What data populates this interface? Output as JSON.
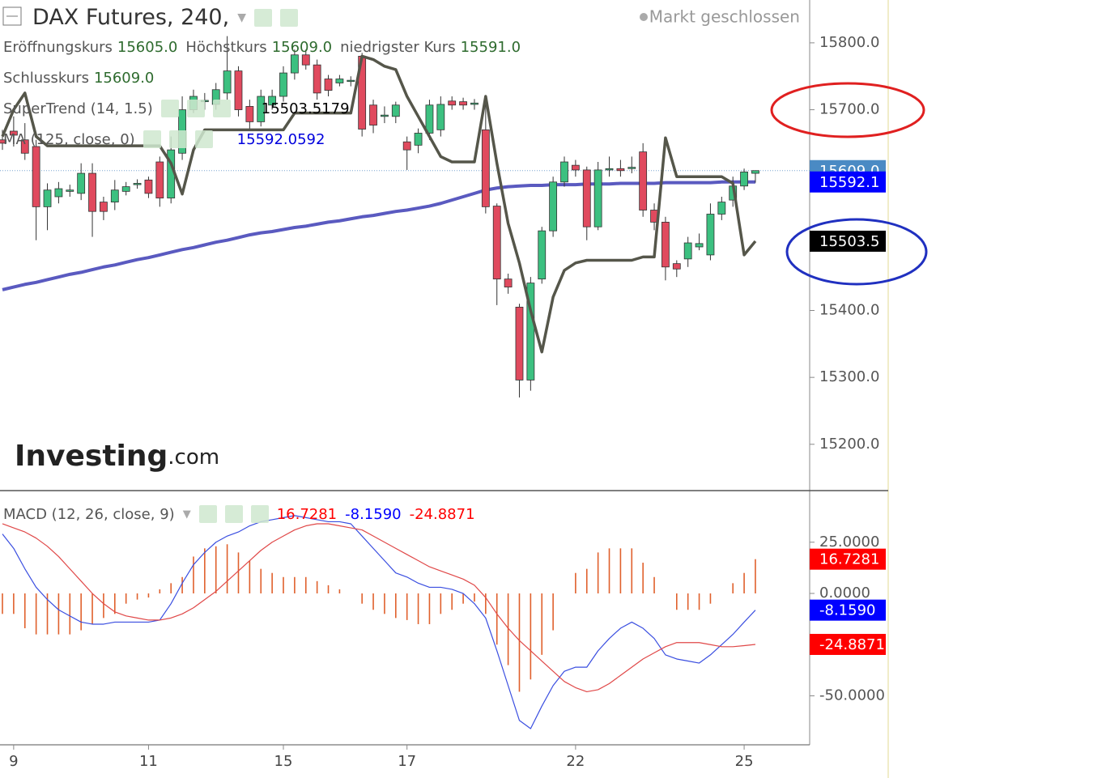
{
  "chart_data": [
    {
      "type": "candlestick",
      "title": "DAX Futures, 240,",
      "status": "Markt geschlossen",
      "watermark": {
        "brand": "Investing",
        "suffix": ".com"
      },
      "ohlc_legend": [
        {
          "label": "Eröffnungskurs",
          "value": "15605.0"
        },
        {
          "label": "Höchstkurs",
          "value": "15609.0"
        },
        {
          "label": "niedrigster Kurs",
          "value": "15591.0"
        }
      ],
      "close_legend": {
        "label": "Schlusskurs",
        "value": "15609.0"
      },
      "last_label": "15609.0",
      "last_color": "#4a8ac4",
      "up_color": "#3cc080",
      "down_color": "#e04a5e",
      "open": [
        15655,
        15668,
        15655,
        15645,
        15555,
        15570,
        15578,
        15575,
        15605,
        15562,
        15562,
        15578,
        15588,
        15595,
        15622,
        15568,
        15635,
        15700,
        15712,
        15708,
        15725,
        15758,
        15705,
        15682,
        15707,
        15720,
        15755,
        15782,
        15767,
        15746,
        15740,
        15743,
        15780,
        15707,
        15690,
        15690,
        15652,
        15647,
        15665,
        15670,
        15713,
        15712,
        15708,
        15670,
        15556,
        15447,
        15405,
        15296,
        15447,
        15519,
        15592,
        15617,
        15610,
        15525,
        15610,
        15612,
        15612,
        15637,
        15550,
        15532,
        15470,
        15477,
        15495,
        15483,
        15544,
        15565,
        15586,
        15605
      ],
      "high": [
        15670,
        15690,
        15680,
        15655,
        15590,
        15592,
        15588,
        15620,
        15620,
        15570,
        15595,
        15592,
        15596,
        15600,
        15630,
        15660,
        15720,
        15730,
        15725,
        15740,
        15810,
        15765,
        15715,
        15730,
        15730,
        15765,
        15790,
        15790,
        15775,
        15752,
        15752,
        15750,
        15785,
        15715,
        15705,
        15712,
        15660,
        15672,
        15715,
        15720,
        15720,
        15718,
        15716,
        15710,
        15560,
        15455,
        15410,
        15450,
        15525,
        15600,
        15630,
        15625,
        15615,
        15622,
        15630,
        15625,
        15630,
        15650,
        15560,
        15540,
        15475,
        15510,
        15515,
        15560,
        15570,
        15600,
        15612,
        15609
      ],
      "low": [
        15640,
        15645,
        15625,
        15505,
        15520,
        15560,
        15570,
        15565,
        15510,
        15535,
        15550,
        15572,
        15582,
        15568,
        15555,
        15560,
        15625,
        15695,
        15700,
        15700,
        15715,
        15690,
        15670,
        15675,
        15700,
        15712,
        15745,
        15760,
        15715,
        15720,
        15735,
        15735,
        15660,
        15665,
        15680,
        15680,
        15610,
        15635,
        15655,
        15660,
        15700,
        15700,
        15700,
        15545,
        15408,
        15425,
        15270,
        15280,
        15440,
        15510,
        15585,
        15600,
        15505,
        15520,
        15600,
        15600,
        15605,
        15540,
        15520,
        15445,
        15450,
        15465,
        15490,
        15475,
        15535,
        15555,
        15580,
        15591
      ],
      "close": [
        15650,
        15662,
        15635,
        15555,
        15580,
        15582,
        15580,
        15605,
        15548,
        15548,
        15580,
        15585,
        15590,
        15575,
        15568,
        15640,
        15700,
        15720,
        15714,
        15730,
        15758,
        15700,
        15682,
        15720,
        15720,
        15755,
        15782,
        15767,
        15725,
        15729,
        15746,
        15744,
        15671,
        15677,
        15692,
        15707,
        15640,
        15665,
        15707,
        15708,
        15707,
        15707,
        15710,
        15555,
        15447,
        15435,
        15296,
        15441,
        15519,
        15592,
        15622,
        15610,
        15525,
        15610,
        15612,
        15609,
        15614,
        15550,
        15532,
        15465,
        15462,
        15501,
        15500,
        15544,
        15562,
        15586,
        15607,
        15609
      ],
      "overlays": [
        {
          "name": "SuperTrend (14, 1.5)",
          "color": "#55564a",
          "width": 3.5,
          "legend_value": "15503.5179",
          "legend_color": "#000000",
          "value_label": "15503.5",
          "tag_color": "#000000",
          "values": [
            15660,
            15700,
            15725,
            15660,
            15646,
            15646,
            15646,
            15646,
            15646,
            15646,
            15646,
            15646,
            15646,
            15646,
            15646,
            15620,
            15574,
            15640,
            15670,
            15670,
            15670,
            15670,
            15670,
            15670,
            15670,
            15670,
            15695,
            15695,
            15695,
            15695,
            15695,
            15695,
            15780,
            15775,
            15765,
            15760,
            15720,
            15690,
            15660,
            15630,
            15622,
            15622,
            15622,
            15720,
            15620,
            15530,
            15471,
            15400,
            15338,
            15420,
            15460,
            15471,
            15475,
            15475,
            15475,
            15475,
            15475,
            15480,
            15480,
            15658,
            15600,
            15600,
            15600,
            15600,
            15600,
            15590,
            15483,
            15503.5179
          ]
        },
        {
          "name": "MA (125, close, 0)",
          "color": "#5a5ac0",
          "width": 4,
          "legend_value": "15592.0592",
          "legend_color": "#0000dd",
          "value_label": "15592.1",
          "tag_color": "#0000ff",
          "values": [
            15431,
            15435,
            15439,
            15442,
            15446,
            15450,
            15454,
            15457,
            15461,
            15465,
            15468,
            15472,
            15476,
            15479,
            15483,
            15487,
            15491,
            15494,
            15498,
            15502,
            15505,
            15509,
            15513,
            15516,
            15518,
            15521,
            15524,
            15526,
            15529,
            15532,
            15534,
            15537,
            15540,
            15542,
            15545,
            15548,
            15550,
            15553,
            15556,
            15560,
            15565,
            15570,
            15575,
            15580,
            15583,
            15585,
            15586,
            15587,
            15587,
            15588,
            15588,
            15588,
            15589,
            15589,
            15589,
            15590,
            15590,
            15590,
            15590,
            15591,
            15591,
            15591,
            15591,
            15591,
            15592,
            15592,
            15592,
            15592.0592
          ]
        }
      ],
      "ylim": [
        15132,
        15864
      ],
      "yticks": [
        {
          "value": 15200,
          "label": "15200.0"
        },
        {
          "value": 15300,
          "label": "15300.0"
        },
        {
          "value": 15400,
          "label": "15400.0"
        },
        {
          "value": 15700,
          "label": "15700.0"
        },
        {
          "value": 15800,
          "label": "15800.0"
        }
      ]
    },
    {
      "type": "macd",
      "title": "MACD (12, 26, close, 9)",
      "categories": [
        null,
        "9",
        null,
        null,
        null,
        null,
        null,
        null,
        null,
        null,
        null,
        null,
        null,
        "11",
        null,
        null,
        null,
        null,
        null,
        null,
        null,
        null,
        null,
        null,
        null,
        "15",
        null,
        null,
        null,
        null,
        null,
        null,
        null,
        null,
        null,
        null,
        "17",
        null,
        null,
        null,
        null,
        null,
        null,
        null,
        null,
        null,
        null,
        null,
        null,
        null,
        null,
        "22",
        null,
        null,
        null,
        null,
        null,
        null,
        null,
        null,
        null,
        null,
        null,
        null,
        null,
        null,
        "25",
        null
      ],
      "histogram": {
        "color": "#e0602c",
        "value_label": "16.7281",
        "tag_color": "#ff0000",
        "values": [
          -10,
          -10,
          -17,
          -20,
          -20,
          -20,
          -20,
          -18,
          -15,
          -12,
          -10,
          -5,
          -3,
          -2,
          2,
          5,
          8,
          18,
          22,
          23,
          24,
          20,
          16,
          12,
          10,
          8,
          8,
          8,
          6,
          4,
          2,
          0,
          -5,
          -8,
          -10,
          -12,
          -13,
          -15,
          -15,
          -10,
          -8,
          -5,
          -4,
          -10,
          -25,
          -35,
          -48,
          -42,
          -30,
          -18,
          0,
          10,
          12,
          20,
          22,
          22,
          22,
          15,
          8,
          0,
          -8,
          -8,
          -8,
          -5,
          0,
          5,
          10,
          16.7281
        ]
      },
      "series": [
        {
          "color": "#3a4ee0",
          "value_label": "-8.1590",
          "tag_color": "#0000ff",
          "values": [
            29,
            22,
            12,
            3,
            -3,
            -8,
            -11,
            -14,
            -15,
            -15,
            -14,
            -14,
            -14,
            -14,
            -13,
            -5,
            5,
            14,
            20,
            25,
            28,
            30,
            33,
            35,
            36,
            37,
            38,
            37,
            36,
            35,
            35,
            34,
            28,
            22,
            16,
            10,
            8,
            5,
            3,
            3,
            2,
            0,
            -5,
            -12,
            -28,
            -45,
            -62,
            -66,
            -55,
            -45,
            -38,
            -36,
            -36,
            -28,
            -22,
            -17,
            -14,
            -17,
            -22,
            -30,
            -32,
            -33,
            -34,
            -30,
            -25,
            -20,
            -14,
            -8.159
          ]
        },
        {
          "color": "#e04848",
          "value_label": "-24.8871",
          "tag_color": "#ff0000",
          "values": [
            34,
            32,
            30,
            27,
            23,
            18,
            12,
            6,
            0,
            -5,
            -9,
            -11,
            -12,
            -13,
            -13,
            -12,
            -10,
            -7,
            -3,
            1,
            6,
            11,
            16,
            21,
            25,
            28,
            31,
            33,
            34,
            34,
            33,
            32,
            31,
            28,
            25,
            22,
            19,
            16,
            13,
            11,
            9,
            7,
            4,
            -2,
            -10,
            -17,
            -23,
            -28,
            -33,
            -38,
            -43,
            -46,
            -48,
            -47,
            -44,
            -40,
            -36,
            -32,
            -29,
            -26,
            -24,
            -24,
            -24,
            -25,
            -26,
            -26,
            -25.5,
            -24.8871
          ]
        }
      ],
      "ylim": [
        -73.9,
        49.8
      ],
      "yticks": [
        {
          "value": -50,
          "label": "-50.0000"
        },
        {
          "value": 0,
          "label": "0.0000"
        },
        {
          "value": 25,
          "label": "25.0000"
        }
      ]
    }
  ]
}
